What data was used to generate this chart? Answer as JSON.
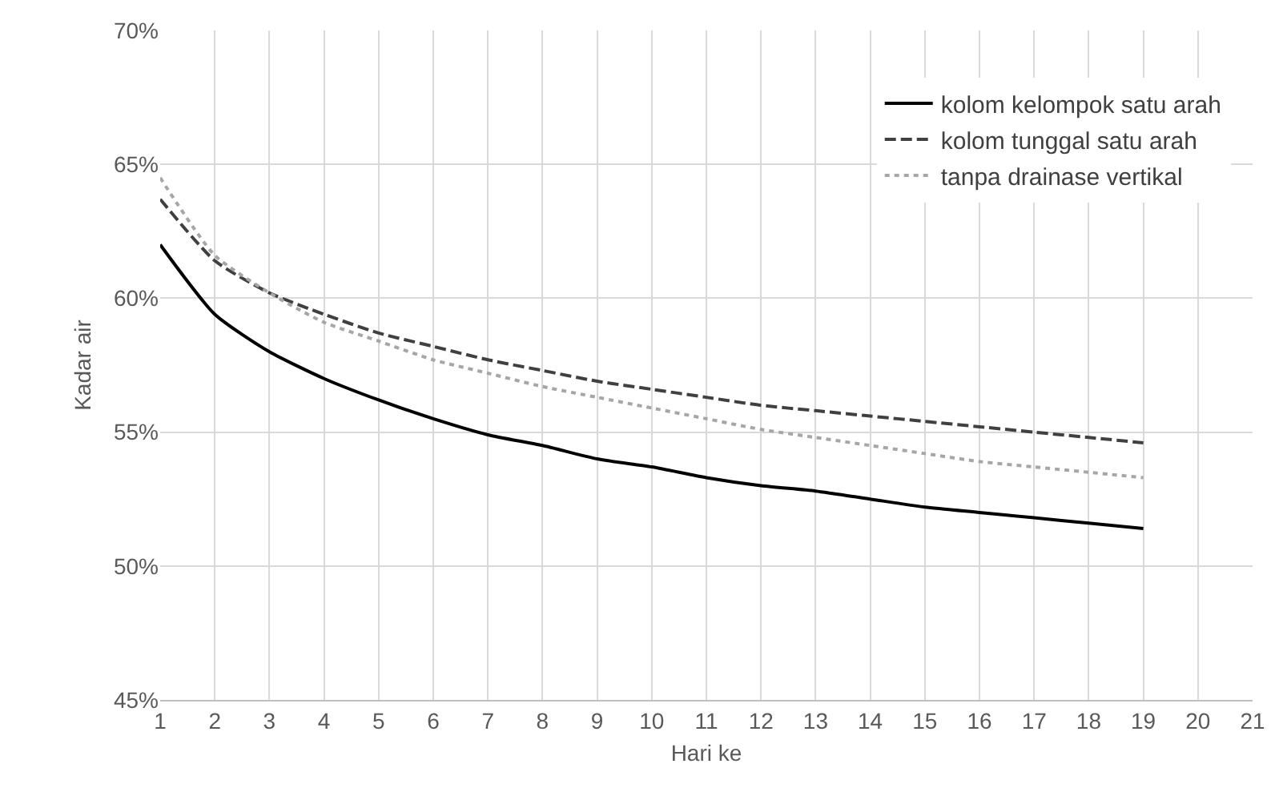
{
  "chart_data": {
    "type": "line",
    "xlabel": "Hari ke",
    "ylabel": "Kadar air",
    "x": [
      1,
      2,
      3,
      4,
      5,
      6,
      7,
      8,
      9,
      10,
      11,
      12,
      13,
      14,
      15,
      16,
      17,
      18,
      19
    ],
    "series": [
      {
        "name": "kolom kelompok satu arah",
        "color": "#000000",
        "line_style": "solid",
        "values": [
          62.0,
          59.4,
          58.0,
          57.0,
          56.2,
          55.5,
          54.9,
          54.5,
          54.0,
          53.7,
          53.3,
          53.0,
          52.8,
          52.5,
          52.2,
          52.0,
          51.8,
          51.6,
          51.4
        ]
      },
      {
        "name": "kolom tunggal satu arah",
        "color": "#404040",
        "line_style": "dashed",
        "values": [
          63.7,
          61.4,
          60.2,
          59.4,
          58.7,
          58.2,
          57.7,
          57.3,
          56.9,
          56.6,
          56.3,
          56.0,
          55.8,
          55.6,
          55.4,
          55.2,
          55.0,
          54.8,
          54.6
        ]
      },
      {
        "name": "tanpa drainase vertikal",
        "color": "#a6a6a6",
        "line_style": "dotted",
        "values": [
          64.5,
          61.6,
          60.2,
          59.1,
          58.4,
          57.7,
          57.2,
          56.7,
          56.3,
          55.9,
          55.5,
          55.1,
          54.8,
          54.5,
          54.2,
          53.9,
          53.7,
          53.5,
          53.3
        ]
      }
    ],
    "xlim": [
      1,
      21
    ],
    "xticks": [
      1,
      2,
      3,
      4,
      5,
      6,
      7,
      8,
      9,
      10,
      11,
      12,
      13,
      14,
      15,
      16,
      17,
      18,
      19,
      20,
      21
    ],
    "ylim": [
      45,
      70
    ],
    "yticks": [
      {
        "value": 45,
        "label": "45%"
      },
      {
        "value": 50,
        "label": "50%"
      },
      {
        "value": 55,
        "label": "55%"
      },
      {
        "value": 60,
        "label": "60%"
      },
      {
        "value": 65,
        "label": "65%"
      },
      {
        "value": 70,
        "label": "70%"
      }
    ],
    "grid": true,
    "legend": "top right",
    "marker": "none"
  }
}
